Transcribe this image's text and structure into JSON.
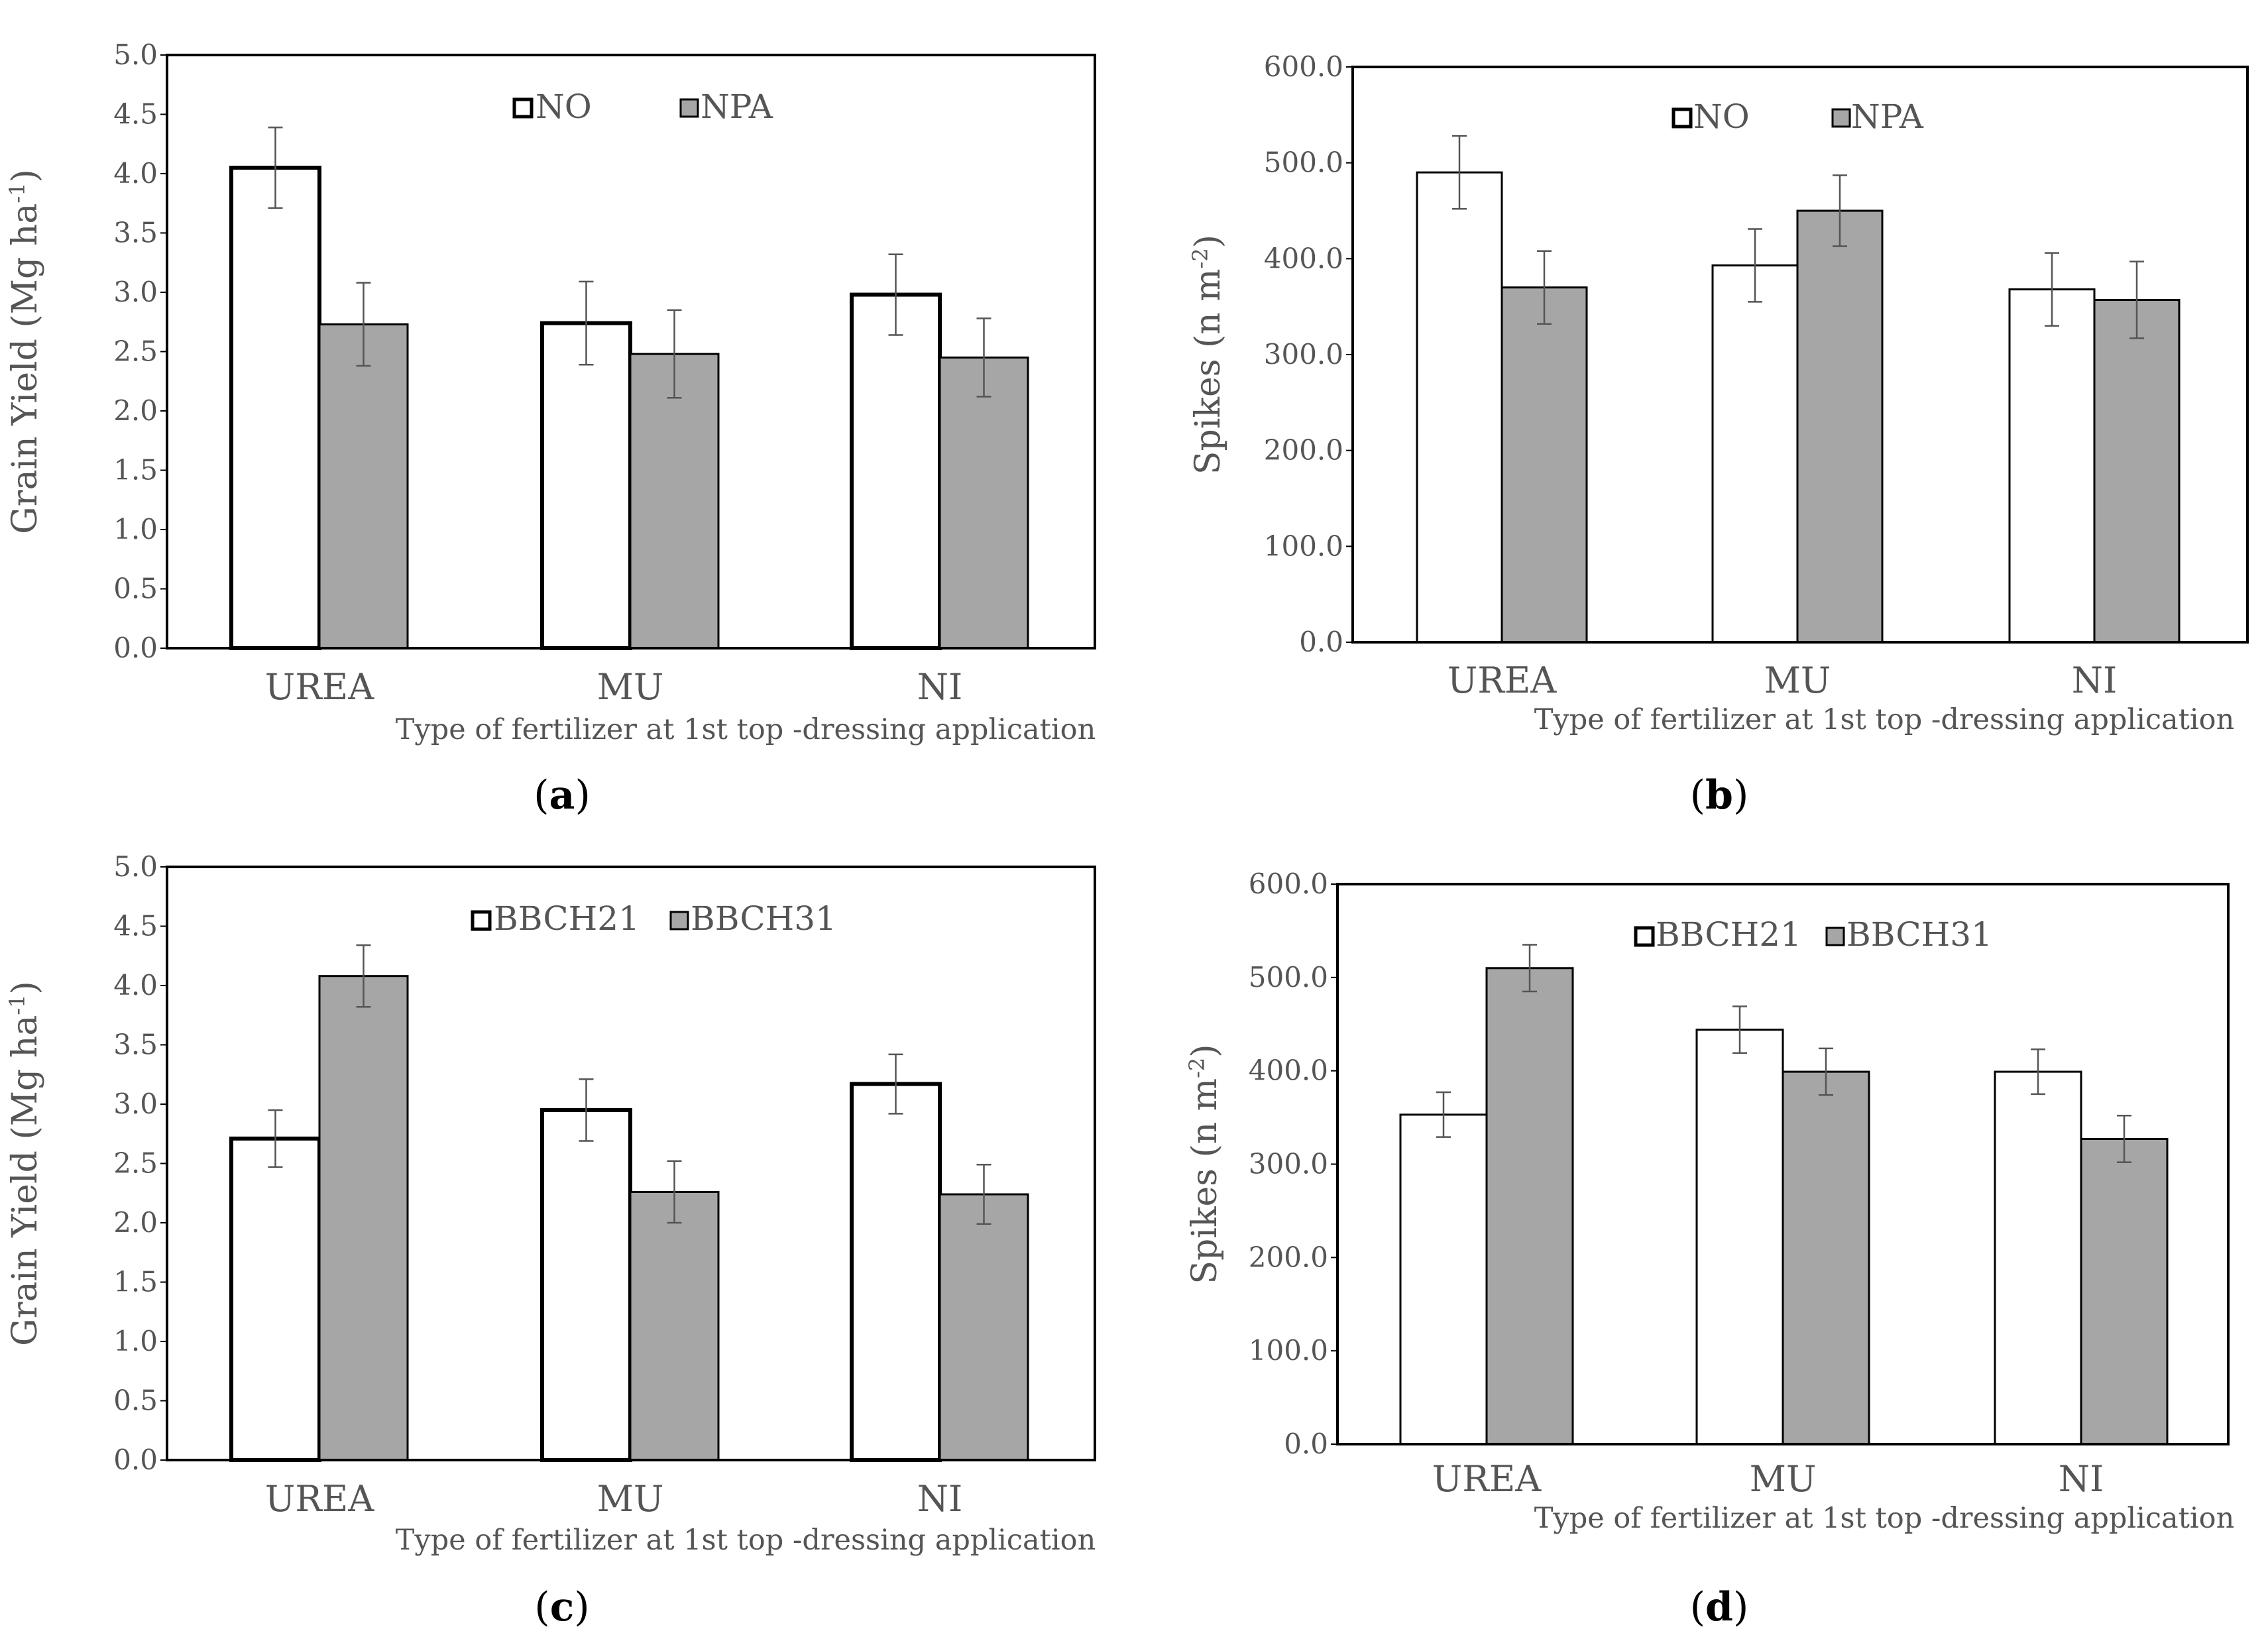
{
  "chart_data": [
    {
      "panel": "a",
      "type": "bar",
      "ylabel": "Grain Yield (Mg ha",
      "ylabel_sup": "-1",
      "ylabel_end": ")",
      "xlabel": "Type of fertilizer at 1st top -dressing application",
      "ylim": [
        0,
        5.0
      ],
      "yticks": [
        "0.0",
        "0.5",
        "1.0",
        "1.5",
        "2.0",
        "2.5",
        "3.0",
        "3.5",
        "4.0",
        "4.5",
        "5.0"
      ],
      "categories": [
        "UREA",
        "MU",
        "NI"
      ],
      "series": [
        {
          "name": "NO",
          "color": "#ffffff",
          "values": [
            4.05,
            2.74,
            2.98
          ],
          "errors": [
            0.34,
            0.35,
            0.34
          ]
        },
        {
          "name": "NPA",
          "color": "#a6a6a6",
          "values": [
            2.73,
            2.48,
            2.45
          ],
          "errors": [
            0.35,
            0.37,
            0.33
          ]
        }
      ]
    },
    {
      "panel": "b",
      "type": "bar",
      "ylabel": "Spikes (n m",
      "ylabel_sup": "-2",
      "ylabel_end": ")",
      "xlabel": "Type of fertilizer at 1st top -dressing application",
      "ylim": [
        0,
        600.0
      ],
      "yticks": [
        "0.0",
        "100.0",
        "200.0",
        "300.0",
        "400.0",
        "500.0",
        "600.0"
      ],
      "categories": [
        "UREA",
        "MU",
        "NI"
      ],
      "series": [
        {
          "name": "NO",
          "color": "#ffffff",
          "values": [
            490,
            393,
            368
          ],
          "errors": [
            38,
            38,
            38
          ]
        },
        {
          "name": "NPA",
          "color": "#a6a6a6",
          "values": [
            370,
            450,
            357
          ],
          "errors": [
            38,
            37,
            40
          ]
        }
      ]
    },
    {
      "panel": "c",
      "type": "bar",
      "ylabel": "Grain Yield (Mg ha",
      "ylabel_sup": "-1",
      "ylabel_end": ")",
      "xlabel": "Type of fertilizer at 1st top -dressing application",
      "ylim": [
        0,
        5.0
      ],
      "yticks": [
        "0.0",
        "0.5",
        "1.0",
        "1.5",
        "2.0",
        "2.5",
        "3.0",
        "3.5",
        "4.0",
        "4.5",
        "5.0"
      ],
      "categories": [
        "UREA",
        "MU",
        "NI"
      ],
      "series": [
        {
          "name": "BBCH21",
          "color": "#ffffff",
          "values": [
            2.71,
            2.95,
            3.17
          ],
          "errors": [
            0.24,
            0.26,
            0.25
          ]
        },
        {
          "name": "BBCH31",
          "color": "#a6a6a6",
          "values": [
            4.08,
            2.26,
            2.24
          ],
          "errors": [
            0.26,
            0.26,
            0.25
          ]
        }
      ]
    },
    {
      "panel": "d",
      "type": "bar",
      "ylabel": "Spikes (n m",
      "ylabel_sup": "-2",
      "ylabel_end": ")",
      "xlabel": "Type of fertilizer at 1st top -dressing application",
      "ylim": [
        0,
        600.0
      ],
      "yticks": [
        "0.0",
        "100.0",
        "200.0",
        "300.0",
        "400.0",
        "500.0",
        "600.0"
      ],
      "categories": [
        "UREA",
        "MU",
        "NI"
      ],
      "series": [
        {
          "name": "BBCH21",
          "color": "#ffffff",
          "values": [
            353,
            444,
            399
          ],
          "errors": [
            24,
            25,
            24
          ]
        },
        {
          "name": "BBCH31",
          "color": "#a6a6a6",
          "values": [
            510,
            399,
            327
          ],
          "errors": [
            25,
            25,
            25
          ]
        }
      ]
    }
  ],
  "captions": [
    {
      "open": "(",
      "letter": "a",
      "close": ")"
    },
    {
      "open": "(",
      "letter": "b",
      "close": ")"
    },
    {
      "open": "(",
      "letter": "c",
      "close": ")"
    },
    {
      "open": "(",
      "letter": "d",
      "close": ")"
    }
  ]
}
